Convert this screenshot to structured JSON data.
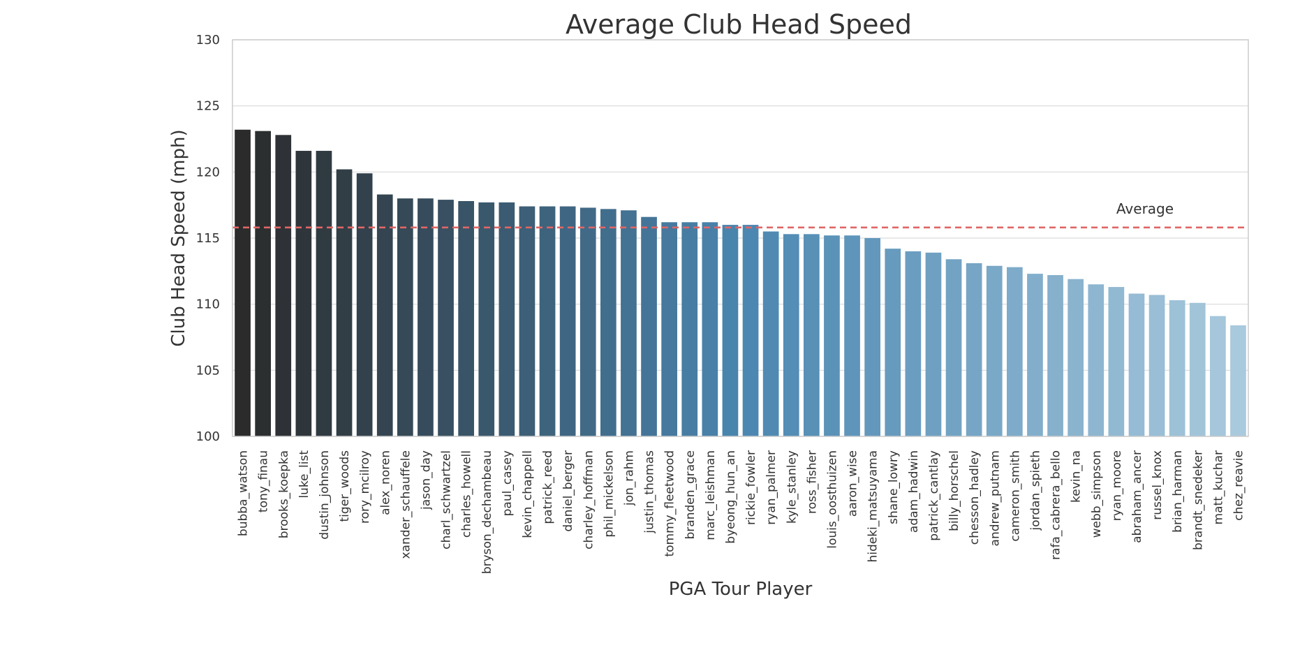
{
  "chart_data": {
    "type": "bar",
    "title": "Average Club Head Speed",
    "xlabel": "PGA Tour Player",
    "ylabel": "Club Head Speed (mph)",
    "ylim": [
      100,
      130
    ],
    "yticks": [
      100,
      105,
      110,
      115,
      120,
      125,
      130
    ],
    "grid": true,
    "categories": [
      "bubba_watson",
      "tony_finau",
      "brooks_koepka",
      "luke_list",
      "dustin_johnson",
      "tiger_woods",
      "rory_mcilroy",
      "alex_noren",
      "xander_schauffele",
      "jason_day",
      "charl_schwartzel",
      "charles_howell",
      "bryson_dechambeau",
      "paul_casey",
      "kevin_chappell",
      "patrick_reed",
      "daniel_berger",
      "charley_hoffman",
      "phil_mickelson",
      "jon_rahm",
      "justin_thomas",
      "tommy_fleetwood",
      "branden_grace",
      "marc_leishman",
      "byeong_hun_an",
      "rickie_fowler",
      "ryan_palmer",
      "kyle_stanley",
      "ross_fisher",
      "louis_oosthuizen",
      "aaron_wise",
      "hideki_matsuyama",
      "shane_lowry",
      "adam_hadwin",
      "patrick_cantlay",
      "billy_horschel",
      "chesson_hadley",
      "andrew_putnam",
      "cameron_smith",
      "jordan_spieth",
      "rafa_cabrera_bello",
      "kevin_na",
      "webb_simpson",
      "ryan_moore",
      "abraham_ancer",
      "russel_knox",
      "brian_harman",
      "brandt_snedeker",
      "matt_kuchar",
      "chez_reavie"
    ],
    "values": [
      123.2,
      123.1,
      122.8,
      121.6,
      121.6,
      120.2,
      119.9,
      118.3,
      118.0,
      118.0,
      117.9,
      117.8,
      117.7,
      117.7,
      117.4,
      117.4,
      117.4,
      117.3,
      117.2,
      117.1,
      116.6,
      116.2,
      116.2,
      116.2,
      116.0,
      116.0,
      115.5,
      115.3,
      115.3,
      115.2,
      115.2,
      115.0,
      114.2,
      114.0,
      113.9,
      113.4,
      113.1,
      112.9,
      112.8,
      112.3,
      112.2,
      111.9,
      111.5,
      111.3,
      110.8,
      110.7,
      110.3,
      110.1,
      109.1,
      108.4
    ],
    "average": {
      "label": "Average",
      "value": 115.8,
      "color": "#e06666"
    },
    "colors": {
      "gradient_start": "#2b2b2b",
      "gradient_mid": "#4a86b0",
      "gradient_end": "#a9c9dd",
      "grid": "#d9d9d9",
      "frame": "#cccccc"
    }
  }
}
